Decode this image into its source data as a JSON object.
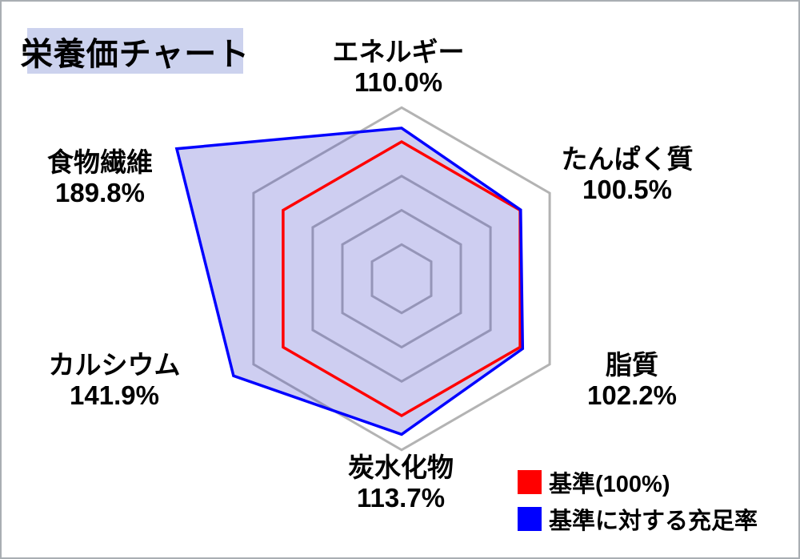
{
  "page": {
    "title_bg_color": "#ccd2ee"
  },
  "chart_data": {
    "type": "radar",
    "title": "栄養価チャート",
    "unit": "%",
    "axes": [
      {
        "label": "エネルギー",
        "value": 110.0,
        "display": "110.0%"
      },
      {
        "label": "たんぱく質",
        "value": 100.5,
        "display": "100.5%"
      },
      {
        "label": "脂質",
        "value": 102.2,
        "display": "102.2%"
      },
      {
        "label": "炭水化物",
        "value": 113.7,
        "display": "113.7%"
      },
      {
        "label": "カルシウム",
        "value": 141.9,
        "display": "141.9%"
      },
      {
        "label": "食物繊維",
        "value": 189.8,
        "display": "189.8%"
      }
    ],
    "grid_levels_pct": [
      25,
      50,
      75,
      125
    ],
    "reference_level_pct": 100,
    "max_grid_level_pct": 125,
    "grid_step_pct": 25,
    "grid_shape": "hexagon",
    "radial_spokes": false,
    "colors": {
      "grid": "#b3b3b3",
      "reference": "#ff0000",
      "data_stroke": "#0000ff",
      "data_fill": "rgba(60,60,200,0.25)"
    },
    "legend": [
      {
        "swatch_color": "#ff0000",
        "label": "基準(100%)"
      },
      {
        "swatch_color": "#0000ff",
        "label": "基準に対する充足率"
      }
    ],
    "legend_position": "bottom-right"
  }
}
